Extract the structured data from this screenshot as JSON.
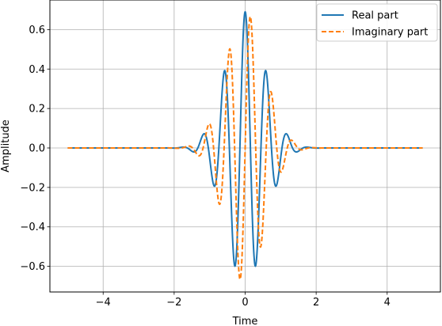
{
  "chart_data": {
    "type": "line",
    "title": "",
    "xlabel": "Time",
    "ylabel": "Amplitude",
    "xlim": [
      -5.5,
      5.5
    ],
    "ylim": [
      -0.73,
      0.75
    ],
    "xticks": [
      -4,
      -2,
      0,
      2,
      4
    ],
    "xtick_labels": [
      "−4",
      "−2",
      "0",
      "2",
      "4"
    ],
    "yticks": [
      -0.6,
      -0.4,
      -0.2,
      0.0,
      0.2,
      0.4,
      0.6
    ],
    "ytick_labels": [
      "−0.6",
      "−0.4",
      "−0.2",
      "0.0",
      "0.2",
      "0.4",
      "0.6"
    ],
    "grid": true,
    "legend_position": "top-right",
    "x_range": [
      -5,
      5
    ],
    "samples": 1600,
    "wavelet": {
      "amplitude": 0.69,
      "omega": 10.6,
      "width": 0.55
    },
    "series": [
      {
        "name": "Real part",
        "part": "real",
        "color": "#1f77b4",
        "dash": "none"
      },
      {
        "name": "Imaginary part",
        "part": "imag",
        "color": "#ff7f0e",
        "dash": "6,3"
      }
    ]
  }
}
